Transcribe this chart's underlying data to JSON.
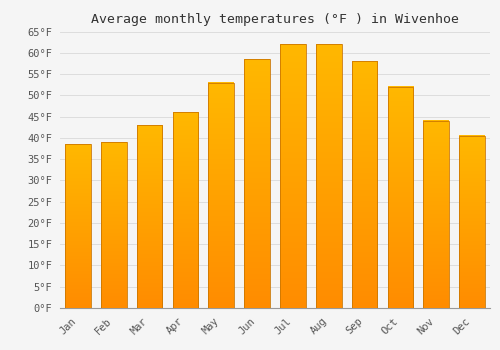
{
  "title": "Average monthly temperatures (°F ) in Wivenhoe",
  "months": [
    "Jan",
    "Feb",
    "Mar",
    "Apr",
    "May",
    "Jun",
    "Jul",
    "Aug",
    "Sep",
    "Oct",
    "Nov",
    "Dec"
  ],
  "values": [
    38.5,
    39.0,
    43.0,
    46.0,
    53.0,
    58.5,
    62.0,
    62.0,
    58.0,
    52.0,
    44.0,
    40.5
  ],
  "bar_color_top": "#FFB800",
  "bar_color_bottom": "#FF8C00",
  "bar_edge_color": "#CC7700",
  "background_color": "#F5F5F5",
  "grid_color": "#DDDDDD",
  "title_fontsize": 9.5,
  "tick_fontsize": 7.5,
  "ylim": [
    0,
    65
  ],
  "yticks": [
    0,
    5,
    10,
    15,
    20,
    25,
    30,
    35,
    40,
    45,
    50,
    55,
    60,
    65
  ]
}
